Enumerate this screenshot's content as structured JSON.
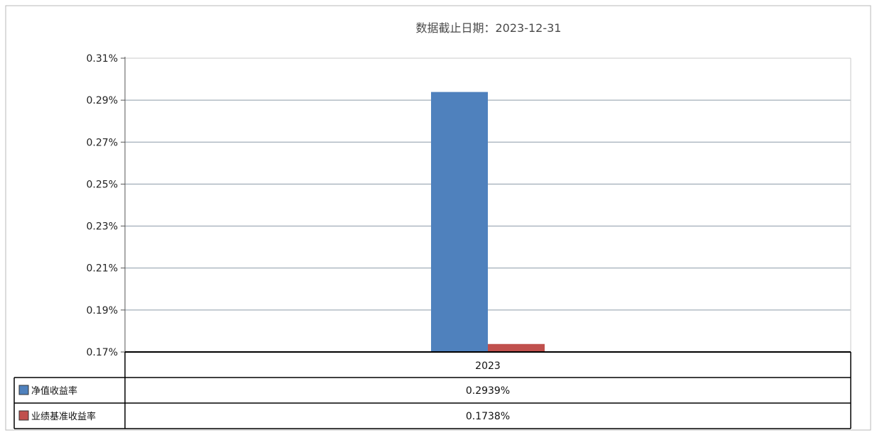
{
  "chart_data": {
    "type": "bar",
    "title": "数据截止日期：2023-12-31",
    "categories": [
      "2023"
    ],
    "series": [
      {
        "name": "净值收益率",
        "values": [
          0.2939
        ],
        "label": "0.2939%",
        "color": "#4f81bd"
      },
      {
        "name": "业绩基准收益率",
        "values": [
          0.1738
        ],
        "label": "0.1738%",
        "color": "#c0504d"
      }
    ],
    "ylim": [
      0.17,
      0.31
    ],
    "yticks": [
      "0.31%",
      "0.29%",
      "0.27%",
      "0.25%",
      "0.23%",
      "0.21%",
      "0.19%",
      "0.17%"
    ],
    "ytick_values": [
      0.31,
      0.29,
      0.27,
      0.25,
      0.23,
      0.21,
      0.19,
      0.17
    ],
    "grid": true,
    "legend": "data-table"
  }
}
